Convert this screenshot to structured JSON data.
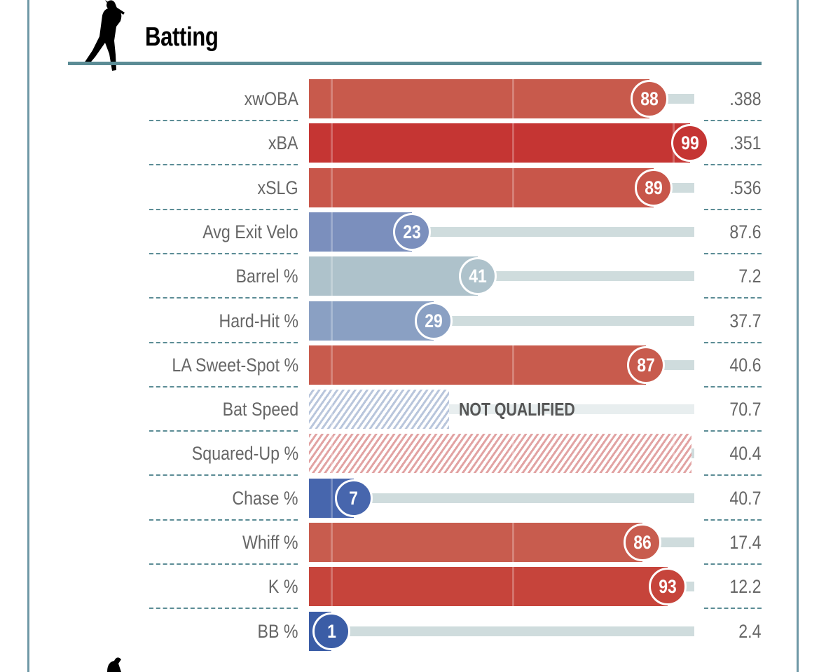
{
  "section_title": "Batting",
  "icon": "batter-silhouette-icon",
  "chart_data": {
    "type": "bar",
    "orientation": "horizontal",
    "metric": "percentile",
    "xlim": [
      0,
      100
    ],
    "color_scale": {
      "low": "#3b5da6",
      "mid": "#aec2cb",
      "high": "#c53533"
    },
    "rows": [
      {
        "label": "xwOBA",
        "percentile": 88,
        "value": ".388",
        "color": "#c85a4c"
      },
      {
        "label": "xBA",
        "percentile": 99,
        "value": ".351",
        "color": "#c53533"
      },
      {
        "label": "xSLG",
        "percentile": 89,
        "value": ".536",
        "color": "#c8564a"
      },
      {
        "label": "Avg Exit Velo",
        "percentile": 23,
        "value": "87.6",
        "color": "#7b8fbd"
      },
      {
        "label": "Barrel %",
        "percentile": 41,
        "value": "7.2",
        "color": "#aec2cb"
      },
      {
        "label": "Hard-Hit %",
        "percentile": 29,
        "value": "37.7",
        "color": "#8aa0c3"
      },
      {
        "label": "LA Sweet-Spot %",
        "percentile": 87,
        "value": "40.6",
        "color": "#c85b4d"
      },
      {
        "label": "Bat Speed",
        "percentile": null,
        "qualified": false,
        "status": "NOT QUALIFIED",
        "value": "70.7",
        "color": "#b9c6dc"
      },
      {
        "label": "Squared-Up %",
        "percentile": null,
        "qualified": false,
        "value": "40.4",
        "color": "#e2a3a3"
      },
      {
        "label": "Chase %",
        "percentile": 7,
        "value": "40.7",
        "color": "#4766ad"
      },
      {
        "label": "Whiff %",
        "percentile": 86,
        "value": "17.4",
        "color": "#c85c4e"
      },
      {
        "label": "K %",
        "percentile": 93,
        "value": "12.2",
        "color": "#c6443b"
      },
      {
        "label": "BB %",
        "percentile": 1,
        "value": "2.4",
        "color": "#3b5da6"
      }
    ]
  }
}
